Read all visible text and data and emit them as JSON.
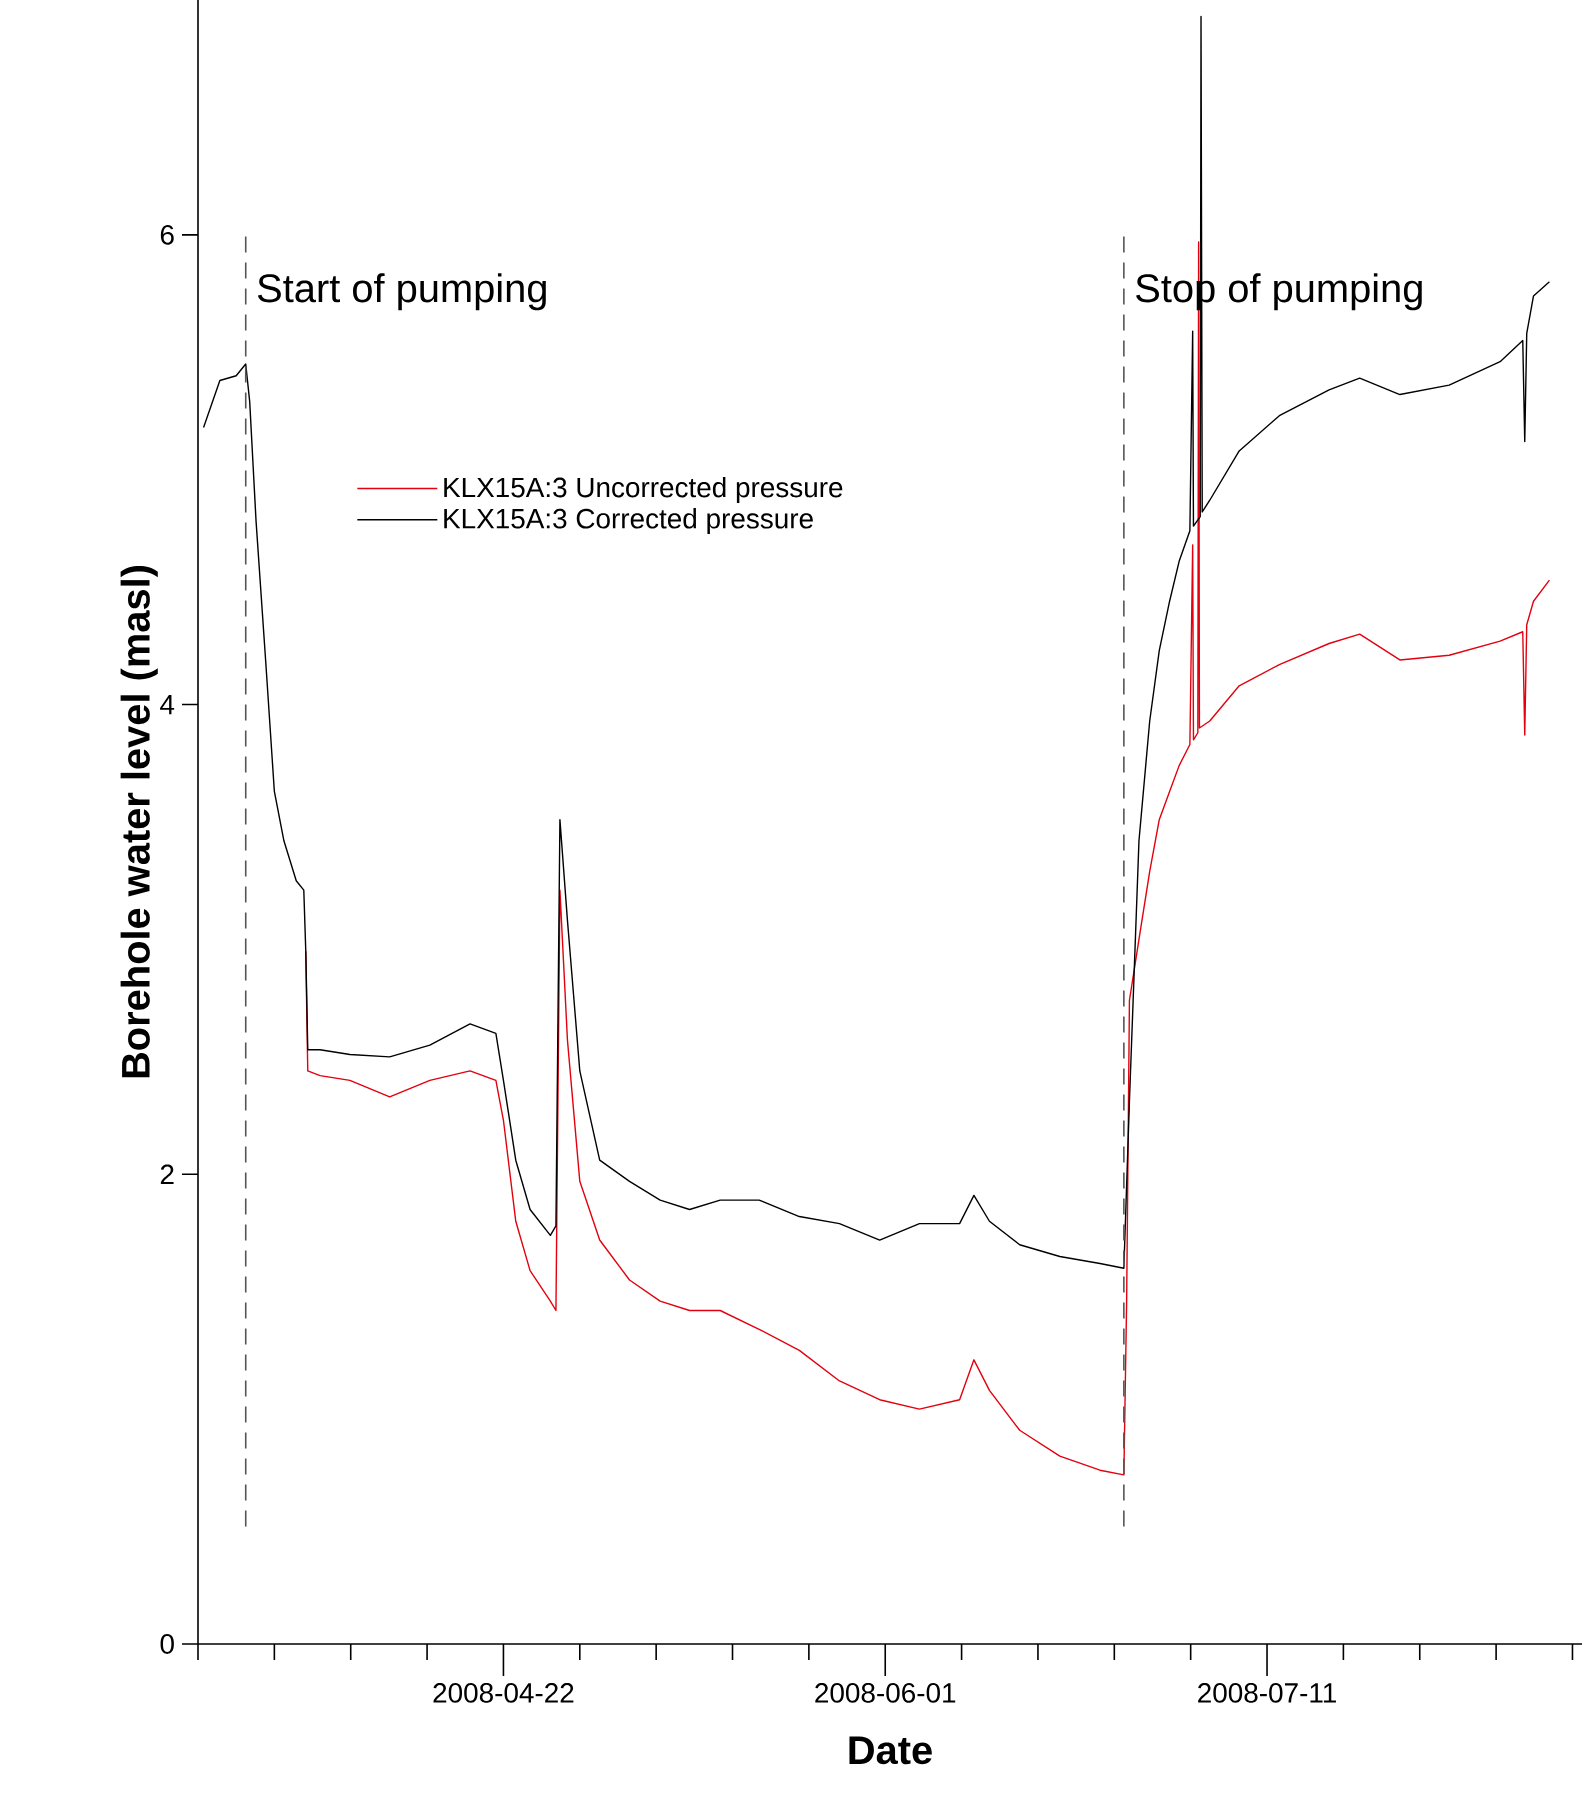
{
  "chart_data": {
    "type": "line",
    "xlabel": "Date",
    "ylabel": "Borehole water level (masl)",
    "xlim": [
      "2008-03-21",
      "2008-08-13"
    ],
    "ylim": [
      0,
      7
    ],
    "yticks": [
      0,
      2,
      4,
      6
    ],
    "xticks": [
      {
        "value": "2008-03-21",
        "label": null
      },
      {
        "value": "2008-03-29",
        "label": null
      },
      {
        "value": "2008-04-06",
        "label": null
      },
      {
        "value": "2008-04-14",
        "label": null
      },
      "2008-04-22",
      {
        "value": "2008-04-30",
        "label": null
      },
      {
        "value": "2008-05-08",
        "label": null
      },
      {
        "value": "2008-05-16",
        "label": null
      },
      {
        "value": "2008-05-24",
        "label": null
      },
      "2008-06-01",
      {
        "value": "2008-06-09",
        "label": null
      },
      {
        "value": "2008-06-17",
        "label": null
      },
      {
        "value": "2008-06-25",
        "label": null
      },
      {
        "value": "2008-07-03",
        "label": null
      },
      "2008-07-11",
      {
        "value": "2008-07-19",
        "label": null
      },
      {
        "value": "2008-07-27",
        "label": null
      },
      {
        "value": "2008-08-04",
        "label": null
      },
      {
        "value": "2008-08-12",
        "label": null
      }
    ],
    "legend": "top",
    "ref_lines": [
      {
        "axis": "x",
        "value": "2008-03-26",
        "label": "Start of pumping",
        "color": "#555555",
        "line_style": "dashed"
      },
      {
        "axis": "x",
        "value": "2008-06-26",
        "label": "Stop of pumping",
        "color": "#555555",
        "line_style": "dashed"
      }
    ],
    "series": [
      {
        "name": "KLX15A:3 Uncorrected pressure",
        "color": "#e3000f",
        "x": [
          "2008-04-01T07:00",
          "2008-04-01T12:00",
          "2008-04-02T19:00",
          "2008-04-05T22:00",
          "2008-04-10T02:00",
          "2008-04-14T07:00",
          "2008-04-18T12:00",
          "2008-04-21T05:00",
          "2008-04-22",
          "2008-04-23T07:00",
          "2008-04-24T19:00",
          "2008-04-26T22:00",
          "2008-04-27T12:00",
          "2008-04-27T22:00",
          "2008-04-28T17:00",
          "2008-04-30",
          "2008-05-02T02:00",
          "2008-05-05T05:00",
          "2008-05-08T10:00",
          "2008-05-11T12:00",
          "2008-05-14T17:00",
          "2008-05-18T19:00",
          "2008-05-23",
          "2008-05-27T05:00",
          "2008-05-31T10:00",
          "2008-06-04T14:00",
          "2008-06-08T19:00",
          "2008-06-10T07:00",
          "2008-06-11T22:00",
          "2008-06-15T02:00",
          "2008-06-19T07:00",
          "2008-06-23T12:00",
          "2008-06-26",
          "2008-06-26T07:00",
          "2008-06-26T14:00",
          "2008-06-27T14:00",
          "2008-06-28T17:00",
          "2008-06-29T17:00",
          "2008-06-30T19:00",
          "2008-07-01T19:00",
          "2008-07-02T22:00",
          "2008-07-03T05:00",
          "2008-07-03T07:00",
          "2008-07-03T18:00",
          "2008-07-03T20:00",
          "2008-07-03T22:00",
          "2008-07-05",
          "2008-07-08T02:00",
          "2008-07-12T07:00",
          "2008-07-17T12:00",
          "2008-07-20T17:00",
          "2008-07-24T22:00",
          "2008-07-30T02:00",
          "2008-08-04T10:00",
          "2008-08-06T19:00",
          "2008-08-07",
          "2008-08-07T05:00",
          "2008-08-07T22:00",
          "2008-08-09T14:00"
        ],
        "values": [
          2.95,
          2.44,
          2.42,
          2.4,
          2.33,
          2.4,
          2.44,
          2.4,
          2.23,
          1.8,
          1.59,
          1.46,
          1.42,
          3.21,
          2.57,
          1.97,
          1.72,
          1.55,
          1.46,
          1.42,
          1.42,
          1.34,
          1.25,
          1.12,
          1.04,
          1.0,
          1.04,
          1.21,
          1.08,
          0.91,
          0.8,
          0.74,
          0.72,
          1.46,
          2.74,
          3.0,
          3.29,
          3.51,
          3.63,
          3.74,
          3.83,
          4.68,
          3.85,
          3.88,
          5.97,
          3.9,
          3.93,
          4.08,
          4.17,
          4.26,
          4.3,
          4.19,
          4.21,
          4.27,
          4.31,
          3.87,
          4.34,
          4.44,
          4.53
        ]
      },
      {
        "name": "KLX15A:3 Corrected pressure",
        "color": "#000000",
        "x": [
          "2008-03-21T14:00",
          "2008-03-23T07:00",
          "2008-03-25",
          "2008-03-26",
          "2008-03-26T10:00",
          "2008-03-27T02:00",
          "2008-03-28T02:00",
          "2008-03-29",
          "2008-03-30",
          "2008-03-31T07:00",
          "2008-04-01T02:00",
          "2008-04-01T07:00",
          "2008-04-01T12:00",
          "2008-04-02T19:00",
          "2008-04-05T22:00",
          "2008-04-10T02:00",
          "2008-04-14T07:00",
          "2008-04-18T12:00",
          "2008-04-21T05:00",
          "2008-04-22",
          "2008-04-23T07:00",
          "2008-04-24T19:00",
          "2008-04-26T22:00",
          "2008-04-27T12:00",
          "2008-04-27T22:00",
          "2008-04-28T17:00",
          "2008-04-30",
          "2008-05-02T02:00",
          "2008-05-05T05:00",
          "2008-05-08T10:00",
          "2008-05-11T12:00",
          "2008-05-14T17:00",
          "2008-05-18T19:00",
          "2008-05-23",
          "2008-05-27T05:00",
          "2008-05-31T10:00",
          "2008-06-04T14:00",
          "2008-06-08T19:00",
          "2008-06-10T07:00",
          "2008-06-11T22:00",
          "2008-06-15T02:00",
          "2008-06-19T07:00",
          "2008-06-23T12:00",
          "2008-06-26",
          "2008-06-26T14:00",
          "2008-06-27T14:00",
          "2008-06-28T17:00",
          "2008-06-29T17:00",
          "2008-06-30T19:00",
          "2008-07-01T19:00",
          "2008-07-02T22:00",
          "2008-07-03T05:00",
          "2008-07-03T07:00",
          "2008-07-04",
          "2008-07-04T02:00",
          "2008-07-04T05:00",
          "2008-07-05",
          "2008-07-08T02:00",
          "2008-07-12T07:00",
          "2008-07-17T12:00",
          "2008-07-20T17:00",
          "2008-07-24T22:00",
          "2008-07-30T02:00",
          "2008-08-04T10:00",
          "2008-08-06T19:00",
          "2008-08-07",
          "2008-08-07T05:00",
          "2008-08-07T22:00",
          "2008-08-09T14:00"
        ],
        "values": [
          5.18,
          5.38,
          5.4,
          5.45,
          5.29,
          4.78,
          4.19,
          3.63,
          3.42,
          3.25,
          3.21,
          2.95,
          2.53,
          2.53,
          2.51,
          2.5,
          2.55,
          2.64,
          2.6,
          2.4,
          2.06,
          1.85,
          1.74,
          1.78,
          3.51,
          3.08,
          2.44,
          2.06,
          1.97,
          1.89,
          1.85,
          1.89,
          1.89,
          1.82,
          1.79,
          1.72,
          1.79,
          1.79,
          1.91,
          1.8,
          1.7,
          1.65,
          1.62,
          1.6,
          2.31,
          3.42,
          3.93,
          4.23,
          4.44,
          4.61,
          4.74,
          5.59,
          4.76,
          4.8,
          6.93,
          4.82,
          4.87,
          5.08,
          5.23,
          5.34,
          5.39,
          5.32,
          5.36,
          5.46,
          5.55,
          5.12,
          5.58,
          5.74,
          5.8
        ]
      }
    ]
  }
}
